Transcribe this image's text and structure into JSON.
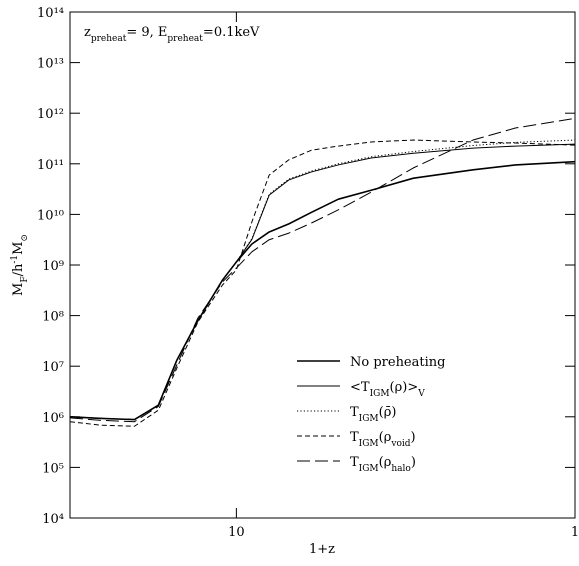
{
  "chart_data": {
    "type": "line",
    "annotation": [
      "z",
      "preheat",
      "= 9, E",
      "preheat",
      "=0.1keV"
    ],
    "x_label": "1+z",
    "y_label": [
      "M",
      "F",
      "/h",
      "-1",
      "M",
      "⊙"
    ],
    "x_scale": "log",
    "y_scale": "log",
    "xlim": [
      31,
      1
    ],
    "ylim": [
      10000,
      100000000000000
    ],
    "xticks": [
      10,
      1
    ],
    "yticks": [
      {
        "value": 10000,
        "label": "10⁴"
      },
      {
        "value": 100000,
        "label": "10⁵"
      },
      {
        "value": 1000000,
        "label": "10⁶"
      },
      {
        "value": 10000000,
        "label": "10⁷"
      },
      {
        "value": 100000000,
        "label": "10⁸"
      },
      {
        "value": 1000000000,
        "label": "10⁹"
      },
      {
        "value": 10000000000,
        "label": "10¹⁰"
      },
      {
        "value": 100000000000,
        "label": "10¹¹"
      },
      {
        "value": 1000000000000,
        "label": "10¹²"
      },
      {
        "value": 10000000000000,
        "label": "10¹³"
      },
      {
        "value": 100000000000000,
        "label": "10¹⁴"
      }
    ],
    "x": [
      31,
      25,
      20,
      17,
      15,
      13,
      11,
      10,
      9,
      8,
      7,
      6,
      5,
      4,
      3,
      2,
      1.5,
      1
    ],
    "series": [
      {
        "name": [
          "No preheating"
        ],
        "color": "#000000",
        "dash": "solid",
        "width": 1.6,
        "values": [
          1000000,
          930000,
          880000,
          1700000,
          13000000,
          79000000,
          500000000,
          1150000000,
          2600000000,
          4500000000,
          6500000000,
          11000000000,
          20000000000,
          30000000000,
          52000000000,
          76000000000,
          95000000000,
          110000000000
        ]
      },
      {
        "name": [
          "<T",
          "IGM",
          "(ρ)>",
          "V"
        ],
        "color": "#000000",
        "dash": "solid",
        "width": 1,
        "values": [
          1000000,
          930000,
          880000,
          1700000,
          13000000,
          79000000,
          500000000,
          1150000000,
          3200000000,
          24000000000,
          48000000000,
          69000000000,
          95000000000,
          130000000000,
          162000000000,
          204000000000,
          224000000000,
          245000000000
        ]
      },
      {
        "name": [
          "T",
          "IGM",
          "(ρ̄)"
        ],
        "color": "#000000",
        "dash": "dotted",
        "width": 1,
        "values": [
          1000000,
          930000,
          880000,
          1700000,
          13000000,
          79000000,
          500000000,
          1150000000,
          3300000000,
          25000000000,
          50000000000,
          72000000000,
          100000000000,
          138000000000,
          175000000000,
          230000000000,
          265000000000,
          295000000000
        ]
      },
      {
        "name": [
          "T",
          "IGM",
          "(ρ",
          "void",
          ")"
        ],
        "color": "#000000",
        "dash": "dashed",
        "width": 1,
        "values": [
          800000,
          680000,
          650000,
          1350000,
          9100000,
          74000000,
          400000000,
          800000000,
          7100000000,
          60000000000,
          120000000000,
          186000000000,
          224000000000,
          270000000000,
          295000000000,
          270000000000,
          257000000000,
          234000000000
        ]
      },
      {
        "name": [
          "T",
          "IGM",
          "(ρ",
          "halo",
          ")"
        ],
        "color": "#000000",
        "dash": "longdash",
        "width": 1,
        "values": [
          950000,
          850000,
          800000,
          1600000,
          10500000,
          89000000,
          460000000,
          870000000,
          1820000000,
          3160000000,
          4270000000,
          6760000000,
          12300000000,
          27500000000,
          83000000000,
          295000000000,
          510000000000,
          790000000000
        ]
      }
    ]
  }
}
